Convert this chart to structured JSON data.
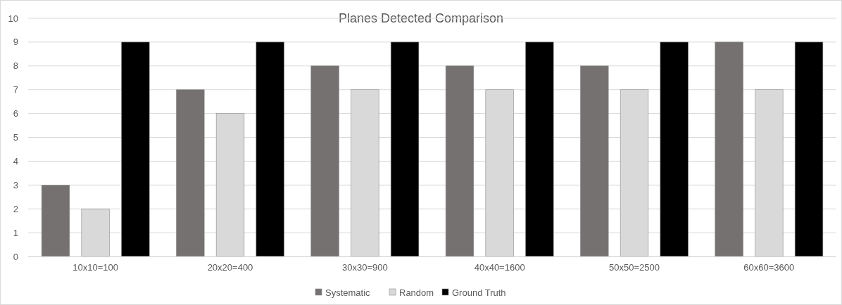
{
  "chart_data": {
    "type": "bar",
    "title": "Planes Detected Comparison",
    "categories": [
      "10x10=100",
      "20x20=400",
      "30x30=900",
      "40x40=1600",
      "50x50=2500",
      "60x60=3600"
    ],
    "series": [
      {
        "name": "Systematic",
        "color": "#767171",
        "values": [
          3,
          7,
          8,
          8,
          8,
          9
        ]
      },
      {
        "name": "Random",
        "color": "#d9d9d9",
        "values": [
          2,
          6,
          7,
          7,
          7,
          7
        ]
      },
      {
        "name": "Ground Truth",
        "color": "#000000",
        "values": [
          9,
          9,
          9,
          9,
          9,
          9
        ]
      }
    ],
    "ylim": [
      0,
      10
    ],
    "yticks": [
      0,
      1,
      2,
      3,
      4,
      5,
      6,
      7,
      8,
      9,
      10
    ],
    "grid": "y",
    "legend": "bottom"
  }
}
